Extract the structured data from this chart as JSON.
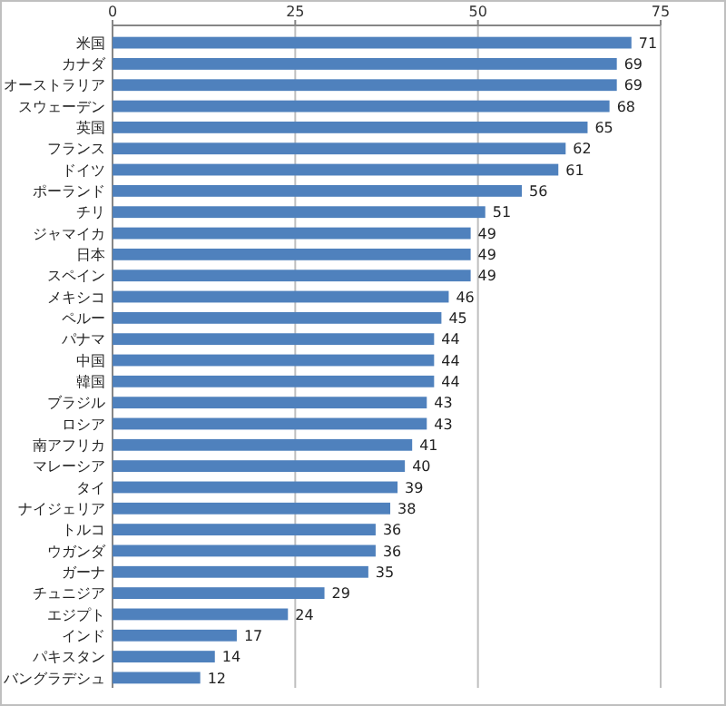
{
  "chart_data": {
    "type": "bar",
    "orientation": "horizontal",
    "categories": [
      "米国",
      "カナダ",
      "オーストラリア",
      "スウェーデン",
      "英国",
      "フランス",
      "ドイツ",
      "ポーランド",
      "チリ",
      "ジャマイカ",
      "日本",
      "スペイン",
      "メキシコ",
      "ペルー",
      "パナマ",
      "中国",
      "韓国",
      "ブラジル",
      "ロシア",
      "南アフリカ",
      "マレーシア",
      "タイ",
      "ナイジェリア",
      "トルコ",
      "ウガンダ",
      "ガーナ",
      "チュニジア",
      "エジプト",
      "インド",
      "パキスタン",
      "バングラデシュ"
    ],
    "values": [
      71,
      69,
      69,
      68,
      65,
      62,
      61,
      56,
      51,
      49,
      49,
      49,
      46,
      45,
      44,
      44,
      44,
      43,
      43,
      41,
      40,
      39,
      38,
      36,
      36,
      35,
      29,
      24,
      17,
      14,
      12
    ],
    "color": "#4f81bd",
    "xlim": [
      0,
      75
    ],
    "xticks": [
      0,
      25,
      50,
      75
    ],
    "grid": "x",
    "data_labels": true
  }
}
